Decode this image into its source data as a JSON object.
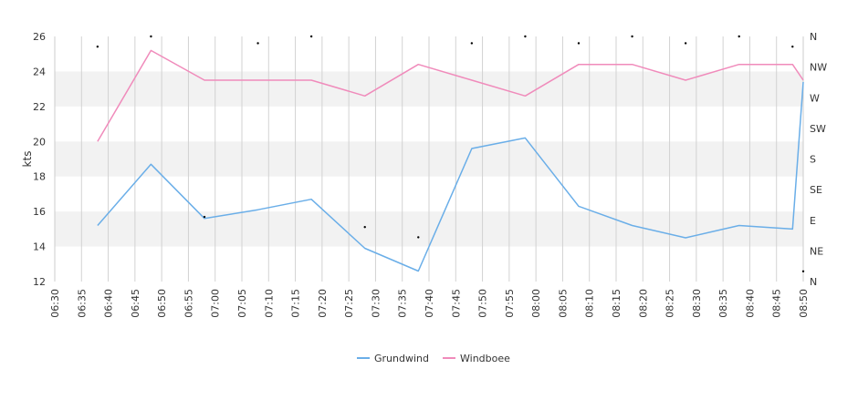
{
  "chart_data": {
    "type": "line",
    "title": "",
    "xlabel": "",
    "ylabel": "kts",
    "ylim": [
      12,
      26
    ],
    "y_ticks": [
      12,
      14,
      16,
      18,
      20,
      22,
      24,
      26
    ],
    "x_tick_labels": [
      "06:30",
      "06:35",
      "06:40",
      "06:45",
      "06:50",
      "06:55",
      "07:00",
      "07:05",
      "07:10",
      "07:15",
      "07:20",
      "07:25",
      "07:30",
      "07:35",
      "07:40",
      "07:45",
      "07:50",
      "07:55",
      "08:00",
      "08:05",
      "08:10",
      "08:15",
      "08:20",
      "08:25",
      "08:30",
      "08:35",
      "08:40",
      "08:45",
      "08:50"
    ],
    "xlim": [
      "06:30",
      "08:50"
    ],
    "y2_tick_labels": [
      "N",
      "NE",
      "E",
      "SE",
      "S",
      "SW",
      "W",
      "NW",
      "N"
    ],
    "y2lim": [
      0,
      360
    ],
    "grid": true,
    "legend_position": "bottom-center",
    "series": [
      {
        "name": "Grundwind",
        "color": "#6aaee8",
        "x": [
          "06:38",
          "06:48",
          "06:58",
          "07:08",
          "07:18",
          "07:28",
          "07:38",
          "07:48",
          "07:58",
          "08:08",
          "08:18",
          "08:28",
          "08:38",
          "08:48",
          "08:50"
        ],
        "values": [
          15.2,
          18.7,
          15.6,
          16.1,
          16.7,
          13.9,
          12.6,
          19.6,
          20.2,
          16.3,
          15.2,
          14.5,
          15.2,
          15.0,
          23.4
        ]
      },
      {
        "name": "Windboee",
        "color": "#f08bbb",
        "x": [
          "06:38",
          "06:48",
          "06:58",
          "07:08",
          "07:18",
          "07:28",
          "07:38",
          "07:48",
          "07:58",
          "08:08",
          "08:18",
          "08:28",
          "08:38",
          "08:48",
          "08:50"
        ],
        "values": [
          20.0,
          25.2,
          23.5,
          23.5,
          23.5,
          22.6,
          24.4,
          23.5,
          22.6,
          24.4,
          24.4,
          23.5,
          24.4,
          24.4,
          23.5
        ]
      }
    ],
    "direction_series": {
      "color": "#000000",
      "x": [
        "06:38",
        "06:48",
        "06:58",
        "07:08",
        "07:18",
        "07:28",
        "07:38",
        "07:48",
        "07:58",
        "08:08",
        "08:18",
        "08:28",
        "08:38",
        "08:48",
        "08:50"
      ],
      "degrees": [
        345,
        360,
        95,
        350,
        360,
        80,
        65,
        350,
        360,
        350,
        360,
        350,
        360,
        345,
        15
      ]
    }
  }
}
